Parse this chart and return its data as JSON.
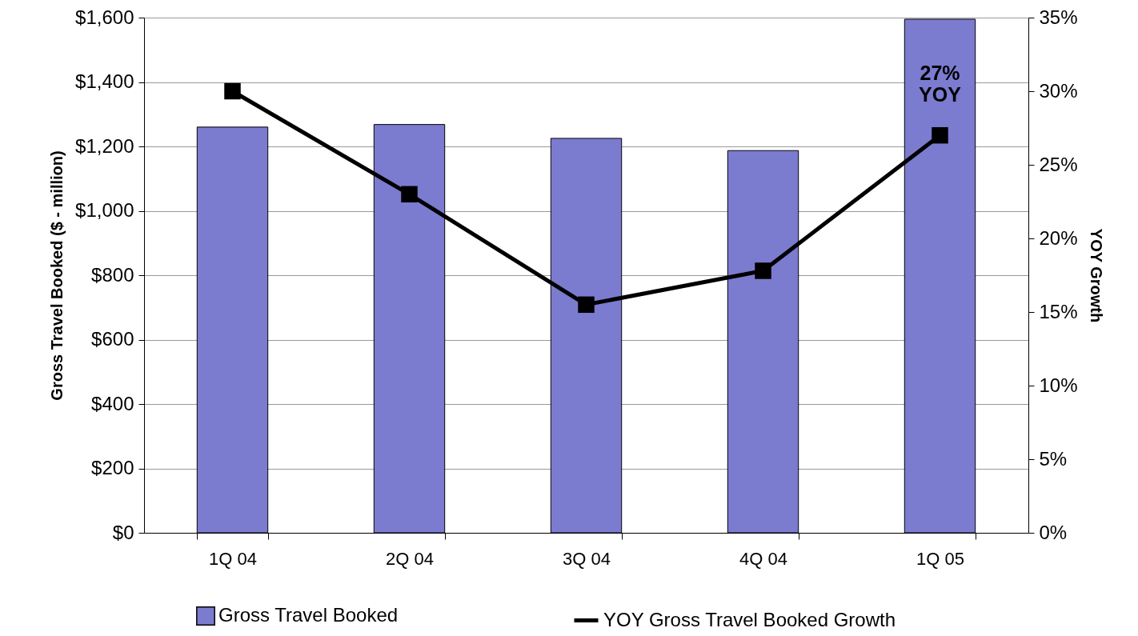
{
  "chart_data": {
    "type": "bar",
    "categories": [
      "1Q 04",
      "2Q 04",
      "3Q 04",
      "4Q 04",
      "1Q 05"
    ],
    "ylabel": "Gross Travel Booked ($ - million)",
    "y2label": "YOY Growth",
    "series": [
      {
        "name": "Gross Travel Booked",
        "color": "#7b7bd0",
        "values": [
          1260,
          1268,
          1225,
          1187,
          1595
        ]
      },
      {
        "name": "YOY Gross Travel Booked Growth",
        "type": "line",
        "axis": "y2",
        "color": "#000000",
        "values": [
          30,
          23,
          15.5,
          17.8,
          27
        ]
      }
    ],
    "ylim": [
      0,
      1600
    ],
    "yticks": [
      {
        "value": 0,
        "label": "$0"
      },
      {
        "value": 200,
        "label": "$200"
      },
      {
        "value": 400,
        "label": "$400"
      },
      {
        "value": 600,
        "label": "$600"
      },
      {
        "value": 800,
        "label": "$800"
      },
      {
        "value": 1000,
        "label": "$1,000"
      },
      {
        "value": 1200,
        "label": "$1,200"
      },
      {
        "value": 1400,
        "label": "$1,400"
      },
      {
        "value": 1600,
        "label": "$1,600"
      }
    ],
    "y2lim": [
      0,
      35
    ],
    "y2ticks": [
      {
        "value": 0,
        "label": "0%"
      },
      {
        "value": 5,
        "label": "5%"
      },
      {
        "value": 10,
        "label": "10%"
      },
      {
        "value": 15,
        "label": "15%"
      },
      {
        "value": 20,
        "label": "20%"
      },
      {
        "value": 25,
        "label": "25%"
      },
      {
        "value": 30,
        "label": "30%"
      },
      {
        "value": 35,
        "label": "35%"
      }
    ],
    "annotations": [
      "27% YOY"
    ],
    "grid": "y",
    "legend": "bottom",
    "marker": "square",
    "line_style": "solid"
  }
}
